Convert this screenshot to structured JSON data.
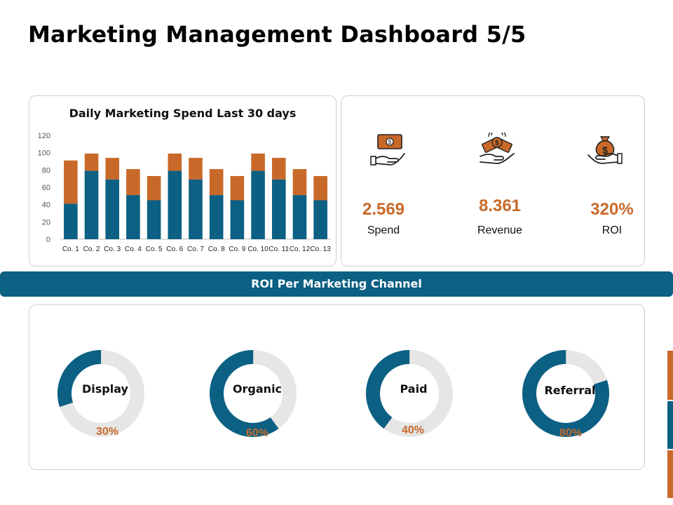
{
  "title": "Marketing Management Dashboard 5/5",
  "colors": {
    "accent_orange": "#c8692a",
    "accent_blue": "#0b6083",
    "track_gray": "#e6e6e6"
  },
  "chart_data": {
    "type": "bar",
    "stacked": true,
    "title": "Daily Marketing Spend Last 30 days",
    "categories": [
      "Co. 1",
      "Co. 2",
      "Co. 3",
      "Co. 4",
      "Co. 5",
      "Co. 6",
      "Co. 7",
      "Co. 8",
      "Co. 9",
      "Co. 10",
      "Co. 11",
      "Co. 12",
      "Co. 13"
    ],
    "series": [
      {
        "values": [
          41,
          79,
          69,
          51,
          45,
          79,
          69,
          51,
          45,
          79,
          69,
          51,
          45
        ],
        "color": "#0b6083"
      },
      {
        "values": [
          50,
          20,
          25,
          30,
          28,
          20,
          25,
          30,
          28,
          20,
          25,
          30,
          28
        ],
        "color": "#c8692a"
      }
    ],
    "ylim": [
      0,
      120
    ],
    "yticks": [
      "0",
      "20",
      "40",
      "60",
      "80",
      "100",
      "120"
    ],
    "grid": false
  },
  "kpis": [
    {
      "icon": "money-hand-icon",
      "value": "2.569",
      "label": "Spend"
    },
    {
      "icon": "coins-hand-icon",
      "value": "8.361",
      "label": "Revenue"
    },
    {
      "icon": "money-bag-hand-icon",
      "value": "320%",
      "label": "ROI"
    }
  ],
  "roi_header": "ROI Per Marketing Channel",
  "channels": [
    {
      "label": "Display",
      "percent_text": "30%",
      "fraction": 0.3
    },
    {
      "label": "Organic",
      "percent_text": "60%",
      "fraction": 0.6
    },
    {
      "label": "Paid",
      "percent_text": "40%",
      "fraction": 0.4
    },
    {
      "label": "Referral",
      "percent_text": "80%",
      "fraction": 0.8
    }
  ]
}
